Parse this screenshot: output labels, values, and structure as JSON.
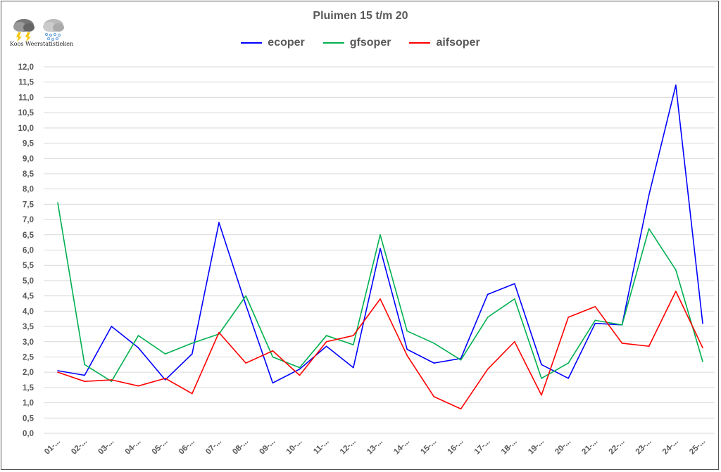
{
  "logo": {
    "text": "Koos Weerstatistieken"
  },
  "chart_data": {
    "type": "line",
    "title": "Pluimen 15 t/m 20",
    "xlabel": "",
    "ylabel": "",
    "ylim": [
      0,
      12
    ],
    "ytick_step": 0.5,
    "yticks": [
      "0,0",
      "0,5",
      "1,0",
      "1,5",
      "2,0",
      "2,5",
      "3,0",
      "3,5",
      "4,0",
      "4,5",
      "5,0",
      "5,5",
      "6,0",
      "6,5",
      "7,0",
      "7,5",
      "8,0",
      "8,5",
      "9,0",
      "9,5",
      "10,0",
      "10,5",
      "11,0",
      "11,5",
      "12,0"
    ],
    "grid": true,
    "legend_placement": "top-center",
    "categories": [
      "01-...",
      "02-...",
      "03-...",
      "04-...",
      "05-...",
      "06-...",
      "07-...",
      "08-...",
      "09-...",
      "10-...",
      "11-...",
      "12-...",
      "13-...",
      "14-...",
      "15-...",
      "16-...",
      "17-...",
      "18-...",
      "19-...",
      "20-...",
      "21-...",
      "22-...",
      "23-...",
      "24-...",
      "25-..."
    ],
    "series": [
      {
        "name": "ecoper",
        "color": "#0000ff",
        "values": [
          2.05,
          1.9,
          3.5,
          2.8,
          1.75,
          2.6,
          6.9,
          4.2,
          1.65,
          2.1,
          2.85,
          2.15,
          6.05,
          2.75,
          2.3,
          2.45,
          4.55,
          4.9,
          2.25,
          1.8,
          3.6,
          3.55,
          7.8,
          11.4,
          3.6
        ]
      },
      {
        "name": "gfsoper",
        "color": "#00b050",
        "values": [
          7.55,
          2.25,
          1.7,
          3.2,
          2.6,
          2.95,
          3.25,
          4.5,
          2.5,
          2.15,
          3.2,
          2.9,
          6.5,
          3.35,
          2.95,
          2.4,
          3.8,
          4.4,
          1.8,
          2.3,
          3.7,
          3.55,
          6.7,
          5.35,
          2.35
        ]
      },
      {
        "name": "aifsoper",
        "color": "#ff0000",
        "values": [
          2.0,
          1.7,
          1.75,
          1.55,
          1.8,
          1.3,
          3.3,
          2.3,
          2.7,
          1.9,
          3.0,
          3.2,
          4.4,
          2.55,
          1.2,
          0.8,
          2.1,
          3.0,
          1.25,
          3.8,
          4.15,
          2.95,
          2.85,
          4.65,
          2.8
        ]
      }
    ]
  }
}
